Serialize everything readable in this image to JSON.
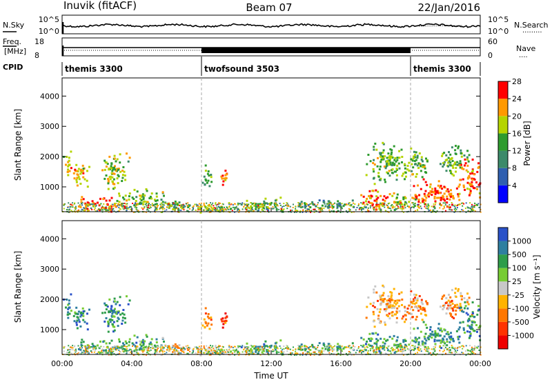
{
  "header": {
    "station": "Inuvik (fitACF)",
    "beam": "Beam 07",
    "date": "22/Jan/2016"
  },
  "status_panels": {
    "nsky_label": "N.Sky",
    "nsearch_label": "N.Search",
    "nsearch_legend": "·········",
    "freq_label_top": "Freq.",
    "freq_label_units": "[MHz]",
    "nave_label": "Nave",
    "nave_legend": "····",
    "cpid_label": "CPID",
    "noise_ticks_left": [
      "10^5",
      "10^0"
    ],
    "noise_ticks_right": [
      "10^5",
      "10^0"
    ],
    "freq_ticks": [
      "18",
      "8"
    ],
    "nave_ticks": [
      "60",
      "0"
    ],
    "freq_mhz_level": 11,
    "nave_level_normal": 20,
    "nave_level_dense": 25,
    "cpid_segments": [
      {
        "label": "themis 3300",
        "start_hour": 0,
        "end_hour": 8
      },
      {
        "label": "twofsound 3503",
        "start_hour": 8,
        "end_hour": 20
      },
      {
        "label": "themis 3300",
        "start_hour": 20,
        "end_hour": 24
      }
    ]
  },
  "chart_data": [
    {
      "type": "heatmap",
      "name": "power",
      "ylabel": "Slant Range [km]",
      "yticks": [
        "1000",
        "2000",
        "3000",
        "4000"
      ],
      "ylim": [
        180,
        4600
      ],
      "xlim": [
        0,
        24
      ],
      "colorbar_label": "Power [dB]",
      "colorbar_ticks": [
        "4",
        "8",
        "12",
        "16",
        "20",
        "24",
        "28"
      ],
      "colorbar_colors": [
        "#0000ff",
        "#2f5fb0",
        "#3c8a6a",
        "#2e9b2e",
        "#b5d400",
        "#ff9900",
        "#ff0000"
      ],
      "blobs": [
        {
          "t": 1.0,
          "r": 1400,
          "dt": 0.6,
          "dr": 500,
          "lvl": 0.72
        },
        {
          "t": 2.3,
          "r": 450,
          "dt": 1.6,
          "dr": 260,
          "lvl": 0.88
        },
        {
          "t": 3.0,
          "r": 1550,
          "dt": 1.0,
          "dr": 650,
          "lvl": 0.6
        },
        {
          "t": 4.5,
          "r": 700,
          "dt": 1.6,
          "dr": 300,
          "lvl": 0.55
        },
        {
          "t": 6.5,
          "r": 400,
          "dt": 1.5,
          "dr": 200,
          "lvl": 0.45
        },
        {
          "t": 8.3,
          "r": 1350,
          "dt": 0.3,
          "dr": 500,
          "lvl": 0.5
        },
        {
          "t": 9.3,
          "r": 1400,
          "dt": 0.3,
          "dr": 400,
          "lvl": 0.78
        },
        {
          "t": 8.6,
          "r": 300,
          "dt": 1.2,
          "dr": 200,
          "lvl": 0.7
        },
        {
          "t": 11.5,
          "r": 450,
          "dt": 1.5,
          "dr": 280,
          "lvl": 0.55
        },
        {
          "t": 15.3,
          "r": 400,
          "dt": 2.3,
          "dr": 220,
          "lvl": 0.4
        },
        {
          "t": 18.5,
          "r": 1800,
          "dt": 1.3,
          "dr": 800,
          "lvl": 0.55
        },
        {
          "t": 18.0,
          "r": 600,
          "dt": 1.1,
          "dr": 400,
          "lvl": 0.82
        },
        {
          "t": 20.2,
          "r": 1800,
          "dt": 0.8,
          "dr": 600,
          "lvl": 0.58
        },
        {
          "t": 21.4,
          "r": 800,
          "dt": 1.6,
          "dr": 550,
          "lvl": 0.88
        },
        {
          "t": 22.5,
          "r": 1900,
          "dt": 1.0,
          "dr": 600,
          "lvl": 0.52
        },
        {
          "t": 23.3,
          "r": 1300,
          "dt": 0.8,
          "dr": 700,
          "lvl": 0.85
        },
        {
          "t": 0.3,
          "r": 1800,
          "dt": 0.3,
          "dr": 500,
          "lvl": 0.7
        },
        {
          "t": 19.5,
          "r": 500,
          "dt": 0.9,
          "dr": 300,
          "lvl": 0.62
        }
      ]
    },
    {
      "type": "heatmap",
      "name": "velocity",
      "xlabel": "Time UT",
      "ylabel": "Slant Range [km]",
      "xticks": [
        "00:00",
        "04:00",
        "08:00",
        "12:00",
        "16:00",
        "20:00",
        "00:00"
      ],
      "yticks": [
        "1000",
        "2000",
        "3000",
        "4000"
      ],
      "ylim": [
        180,
        4600
      ],
      "xlim": [
        0,
        24
      ],
      "colorbar_label": "Velocity [m s⁻¹]",
      "colorbar_ticks": [
        "1000",
        "500",
        "100",
        "25",
        "-25",
        "-100",
        "-500",
        "-1000"
      ],
      "colorbar_colors": [
        "#2a52c8",
        "#2e7fa0",
        "#2e9d4a",
        "#77cc33",
        "#c8c8c8",
        "#ffb300",
        "#ff7700",
        "#ff3300",
        "#ee0000"
      ],
      "blobs": [
        {
          "t": 1.0,
          "r": 1400,
          "dt": 0.6,
          "dr": 500,
          "lvl": 0.2
        },
        {
          "t": 2.3,
          "r": 450,
          "dt": 1.6,
          "dr": 260,
          "lvl": 0.28
        },
        {
          "t": 3.0,
          "r": 1550,
          "dt": 1.0,
          "dr": 650,
          "lvl": 0.2
        },
        {
          "t": 4.5,
          "r": 600,
          "dt": 1.6,
          "dr": 300,
          "lvl": 0.28
        },
        {
          "t": 6.5,
          "r": 400,
          "dt": 1.5,
          "dr": 200,
          "lvl": 0.6
        },
        {
          "t": 8.3,
          "r": 1350,
          "dt": 0.3,
          "dr": 500,
          "lvl": 0.72
        },
        {
          "t": 9.3,
          "r": 1400,
          "dt": 0.3,
          "dr": 400,
          "lvl": 0.8
        },
        {
          "t": 8.6,
          "r": 300,
          "dt": 1.2,
          "dr": 200,
          "lvl": 0.58
        },
        {
          "t": 11.5,
          "r": 450,
          "dt": 1.5,
          "dr": 280,
          "lvl": 0.25
        },
        {
          "t": 15.3,
          "r": 400,
          "dt": 2.3,
          "dr": 220,
          "lvl": 0.3
        },
        {
          "t": 18.5,
          "r": 1800,
          "dt": 1.3,
          "dr": 800,
          "lvl": 0.62
        },
        {
          "t": 18.0,
          "r": 600,
          "dt": 1.1,
          "dr": 400,
          "lvl": 0.25
        },
        {
          "t": 20.2,
          "r": 1800,
          "dt": 0.8,
          "dr": 600,
          "lvl": 0.7
        },
        {
          "t": 21.4,
          "r": 800,
          "dt": 1.6,
          "dr": 550,
          "lvl": 0.25
        },
        {
          "t": 22.5,
          "r": 1900,
          "dt": 1.0,
          "dr": 600,
          "lvl": 0.65
        },
        {
          "t": 23.3,
          "r": 1300,
          "dt": 0.8,
          "dr": 700,
          "lvl": 0.22
        },
        {
          "t": 0.3,
          "r": 1800,
          "dt": 0.3,
          "dr": 500,
          "lvl": 0.22
        },
        {
          "t": 19.5,
          "r": 500,
          "dt": 0.9,
          "dr": 300,
          "lvl": 0.3
        }
      ]
    }
  ]
}
